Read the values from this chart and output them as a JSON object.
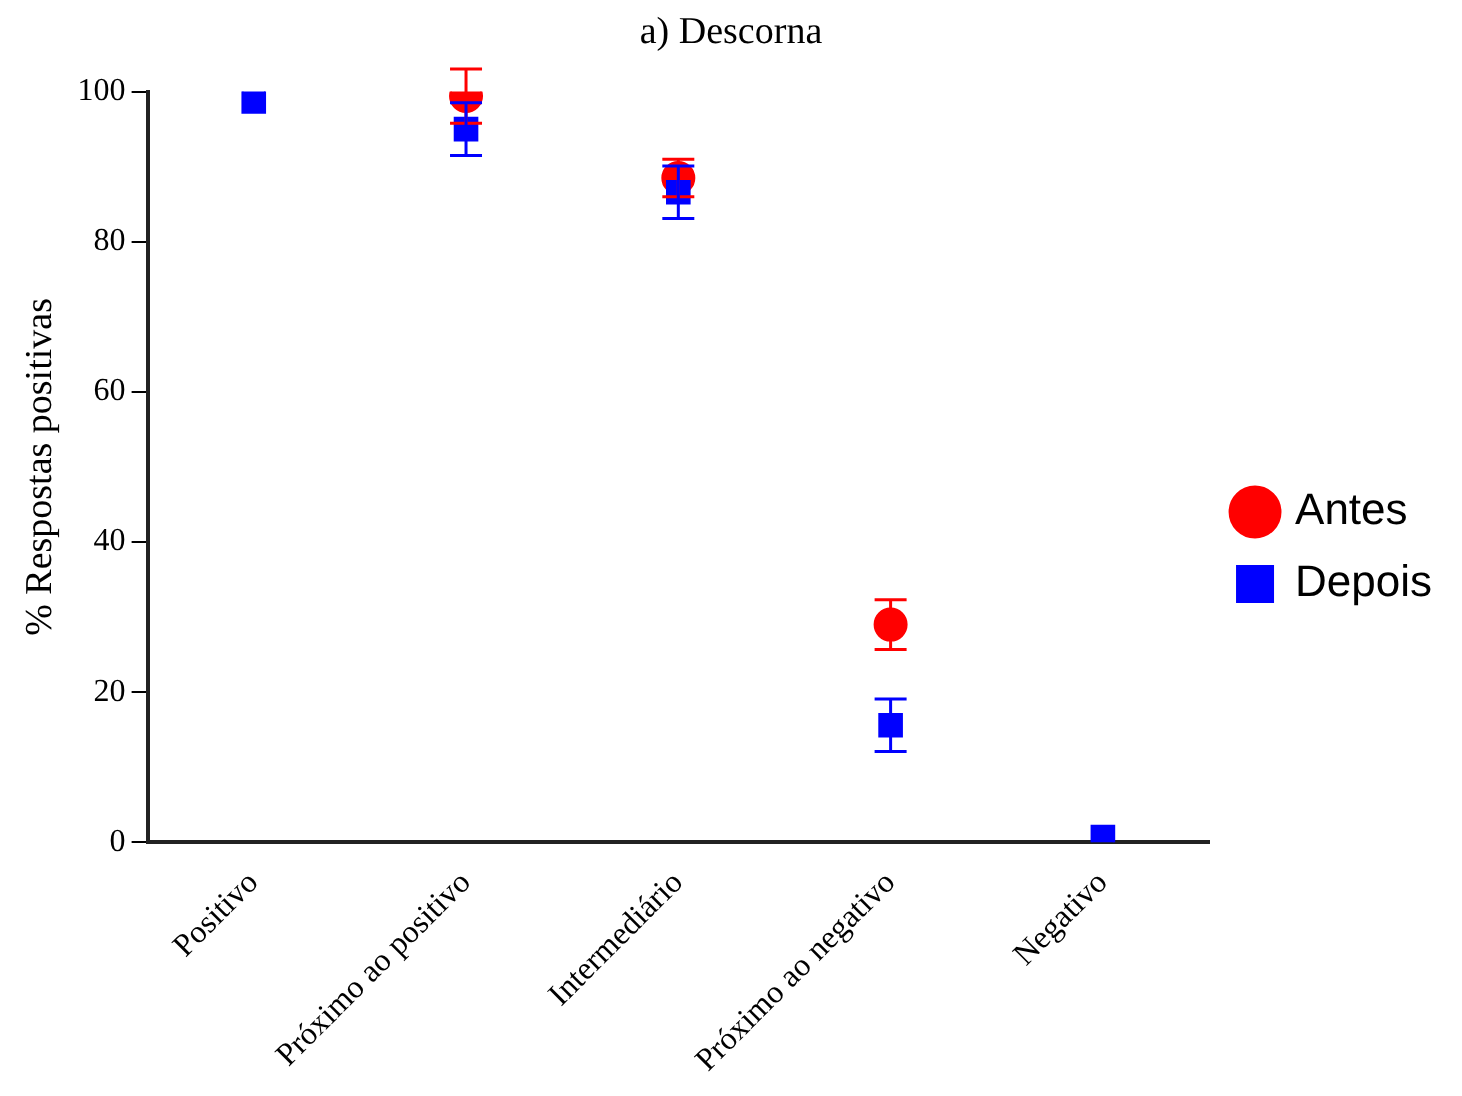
{
  "chart_data": {
    "type": "scatter",
    "title": "a) Descorna",
    "ylabel": "% Respostas positivas",
    "categories": [
      "Positivo",
      "Próximo ao positivo",
      "Intermediário",
      "Próximo ao negativo",
      "Negativo"
    ],
    "series": [
      {
        "name": "Antes",
        "color": "#ff0000",
        "marker": "circle",
        "values": [
          null,
          99.4,
          88.5,
          29,
          null
        ],
        "errors": [
          null,
          3.6,
          2.5,
          3.3,
          null
        ]
      },
      {
        "name": "Depois",
        "color": "#0000ff",
        "marker": "square",
        "values": [
          98.7,
          95,
          86.6,
          15.6,
          0.7
        ],
        "errors": [
          null,
          3.5,
          3.5,
          3.5,
          null
        ]
      }
    ],
    "ylim": [
      0,
      100
    ],
    "yticks": [
      0,
      20,
      40,
      60,
      80,
      100
    ],
    "grid": false,
    "legend": "right"
  }
}
